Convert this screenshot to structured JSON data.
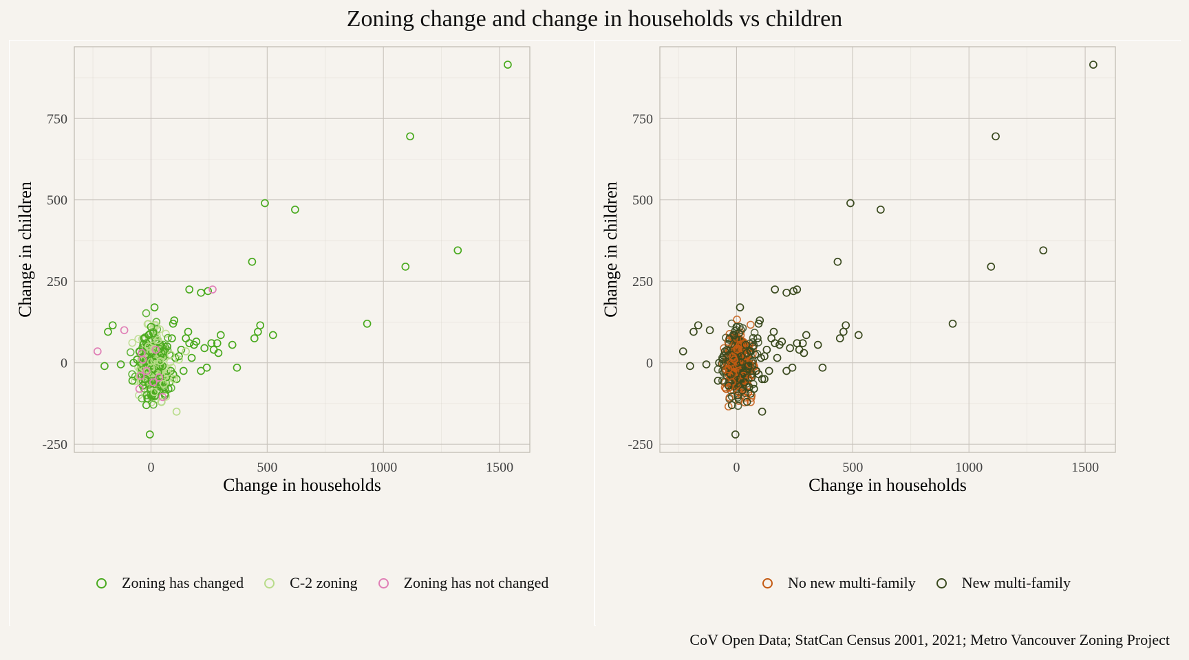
{
  "title": "Zoning change and change in households vs children",
  "caption": "CoV Open Data; StatCan Census 2001, 2021; Metro Vancouver Zoning Project",
  "colors": {
    "zoning_changed": "#4aaa1f",
    "c2_zoning": "#b8dc8a",
    "zoning_not_changed": "#e07fb6",
    "no_new_multifamily": "#c45a12",
    "new_multifamily": "#3a4a1f",
    "grid": "#d9d4cc",
    "background": "#f6f3ee"
  },
  "chart_data": [
    {
      "type": "scatter",
      "xlabel": "Change in households",
      "ylabel": "Change in children",
      "xlim": [
        -330,
        1630
      ],
      "ylim": [
        -275,
        970
      ],
      "x_ticks": [
        0,
        500,
        1000,
        1500
      ],
      "y_ticks": [
        -250,
        0,
        250,
        500,
        750
      ],
      "grid": true,
      "legend_position": "bottom",
      "series": [
        {
          "name": "Zoning has changed",
          "color_key": "zoning_changed",
          "points": [
            [
              1535,
              915
            ],
            [
              1115,
              695
            ],
            [
              1320,
              345
            ],
            [
              1095,
              295
            ],
            [
              490,
              490
            ],
            [
              620,
              470
            ],
            [
              435,
              310
            ],
            [
              930,
              120
            ],
            [
              165,
              225
            ],
            [
              215,
              215
            ],
            [
              245,
              220
            ],
            [
              300,
              85
            ],
            [
              350,
              55
            ],
            [
              370,
              -15
            ],
            [
              470,
              115
            ],
            [
              460,
              95
            ],
            [
              445,
              75
            ],
            [
              525,
              85
            ],
            [
              290,
              30
            ],
            [
              285,
              60
            ],
            [
              270,
              40
            ],
            [
              260,
              60
            ],
            [
              230,
              45
            ],
            [
              215,
              -25
            ],
            [
              240,
              -15
            ],
            [
              195,
              65
            ],
            [
              185,
              55
            ],
            [
              160,
              95
            ],
            [
              150,
              75
            ],
            [
              165,
              60
            ],
            [
              175,
              15
            ],
            [
              140,
              -25
            ],
            [
              110,
              -50
            ],
            [
              100,
              130
            ],
            [
              90,
              75
            ],
            [
              95,
              120
            ],
            [
              80,
              25
            ],
            [
              75,
              -80
            ],
            [
              60,
              -95
            ],
            [
              55,
              -75
            ],
            [
              45,
              -120
            ],
            [
              15,
              170
            ],
            [
              0,
              110
            ],
            [
              10,
              90
            ],
            [
              -20,
              -130
            ],
            [
              -5,
              -220
            ],
            [
              -10,
              85
            ],
            [
              -30,
              75
            ],
            [
              -50,
              35
            ],
            [
              -60,
              10
            ],
            [
              -75,
              0
            ],
            [
              -80,
              -55
            ],
            [
              -130,
              -5
            ],
            [
              -185,
              95
            ],
            [
              -165,
              115
            ],
            [
              -200,
              -10
            ],
            [
              -20,
              60
            ],
            [
              -25,
              -50
            ],
            [
              20,
              20
            ],
            [
              30,
              -30
            ],
            [
              40,
              55
            ],
            [
              50,
              -10
            ],
            [
              60,
              35
            ],
            [
              70,
              50
            ],
            [
              85,
              -25
            ],
            [
              105,
              15
            ],
            [
              120,
              20
            ],
            [
              25,
              -85
            ],
            [
              35,
              -60
            ],
            [
              -35,
              -70
            ],
            [
              5,
              -100
            ],
            [
              45,
              30
            ],
            [
              65,
              -45
            ],
            [
              95,
              -35
            ],
            [
              130,
              40
            ]
          ]
        },
        {
          "name": "C-2 zoning",
          "color_key": "c2_zoning",
          "points": [
            [
              110,
              -150
            ],
            [
              45,
              -120
            ],
            [
              150,
              35
            ],
            [
              100,
              -50
            ],
            [
              120,
              10
            ],
            [
              70,
              -30
            ],
            [
              30,
              70
            ],
            [
              55,
              -65
            ],
            [
              -10,
              50
            ],
            [
              15,
              -90
            ],
            [
              85,
              25
            ],
            [
              40,
              5
            ]
          ]
        },
        {
          "name": "Zoning has not changed",
          "color_key": "zoning_not_changed",
          "points": [
            [
              265,
              225
            ],
            [
              -115,
              100
            ],
            [
              -230,
              35
            ],
            [
              -50,
              -80
            ],
            [
              50,
              -105
            ],
            [
              -40,
              30
            ],
            [
              -20,
              -25
            ],
            [
              20,
              40
            ],
            [
              35,
              -45
            ],
            [
              -35,
              10
            ],
            [
              10,
              -60
            ],
            [
              -45,
              -40
            ]
          ]
        }
      ],
      "cluster": {
        "x_center": 10,
        "y_center": -5,
        "x_spread": 45,
        "y_spread": 45,
        "count": 420,
        "color_key": "zoning_changed",
        "overlay_color_key": "c2_zoning"
      }
    },
    {
      "type": "scatter",
      "xlabel": "Change in households",
      "ylabel": "Change in children",
      "xlim": [
        -330,
        1630
      ],
      "ylim": [
        -275,
        970
      ],
      "x_ticks": [
        0,
        500,
        1000,
        1500
      ],
      "y_ticks": [
        -250,
        0,
        250,
        500,
        750
      ],
      "grid": true,
      "legend_position": "bottom",
      "series": [
        {
          "name": "No new multi-family",
          "color_key": "no_new_multifamily",
          "points": [
            [
              -50,
              35
            ],
            [
              -45,
              -80
            ],
            [
              -30,
              -75
            ],
            [
              10,
              -90
            ],
            [
              -20,
              -60
            ],
            [
              25,
              40
            ],
            [
              30,
              -40
            ],
            [
              40,
              20
            ],
            [
              -10,
              10
            ],
            [
              15,
              55
            ],
            [
              -35,
              -20
            ],
            [
              50,
              -70
            ]
          ]
        },
        {
          "name": "New multi-family",
          "color_key": "new_multifamily",
          "points": [
            [
              1535,
              915
            ],
            [
              1115,
              695
            ],
            [
              1320,
              345
            ],
            [
              1095,
              295
            ],
            [
              490,
              490
            ],
            [
              620,
              470
            ],
            [
              435,
              310
            ],
            [
              930,
              120
            ],
            [
              165,
              225
            ],
            [
              215,
              215
            ],
            [
              245,
              220
            ],
            [
              260,
              225
            ],
            [
              300,
              85
            ],
            [
              350,
              55
            ],
            [
              370,
              -15
            ],
            [
              470,
              115
            ],
            [
              460,
              95
            ],
            [
              445,
              75
            ],
            [
              525,
              85
            ],
            [
              290,
              30
            ],
            [
              285,
              60
            ],
            [
              270,
              40
            ],
            [
              260,
              60
            ],
            [
              230,
              45
            ],
            [
              215,
              -25
            ],
            [
              240,
              -15
            ],
            [
              195,
              65
            ],
            [
              185,
              55
            ],
            [
              160,
              95
            ],
            [
              150,
              75
            ],
            [
              165,
              60
            ],
            [
              175,
              15
            ],
            [
              140,
              -25
            ],
            [
              110,
              -50
            ],
            [
              100,
              130
            ],
            [
              90,
              75
            ],
            [
              95,
              120
            ],
            [
              80,
              25
            ],
            [
              75,
              -80
            ],
            [
              60,
              -95
            ],
            [
              55,
              -75
            ],
            [
              45,
              -120
            ],
            [
              110,
              -150
            ],
            [
              15,
              170
            ],
            [
              0,
              110
            ],
            [
              10,
              90
            ],
            [
              -20,
              -130
            ],
            [
              -5,
              -220
            ],
            [
              -10,
              85
            ],
            [
              -30,
              75
            ],
            [
              -50,
              35
            ],
            [
              -60,
              10
            ],
            [
              -75,
              0
            ],
            [
              -80,
              -55
            ],
            [
              -130,
              -5
            ],
            [
              -185,
              95
            ],
            [
              -165,
              115
            ],
            [
              -200,
              -10
            ],
            [
              -230,
              35
            ],
            [
              -115,
              100
            ],
            [
              120,
              -50
            ],
            [
              20,
              20
            ],
            [
              30,
              -30
            ],
            [
              40,
              55
            ],
            [
              50,
              -10
            ],
            [
              60,
              35
            ],
            [
              70,
              50
            ],
            [
              85,
              -25
            ],
            [
              105,
              15
            ],
            [
              120,
              20
            ],
            [
              25,
              -85
            ],
            [
              35,
              -60
            ],
            [
              -35,
              -70
            ],
            [
              5,
              -100
            ],
            [
              45,
              30
            ],
            [
              65,
              -45
            ],
            [
              95,
              -35
            ],
            [
              130,
              40
            ]
          ]
        }
      ],
      "cluster": {
        "x_center": 10,
        "y_center": -5,
        "x_spread": 45,
        "y_spread": 45,
        "count": 420,
        "color_key": "no_new_multifamily",
        "overlay_color_key": "new_multifamily"
      }
    }
  ]
}
